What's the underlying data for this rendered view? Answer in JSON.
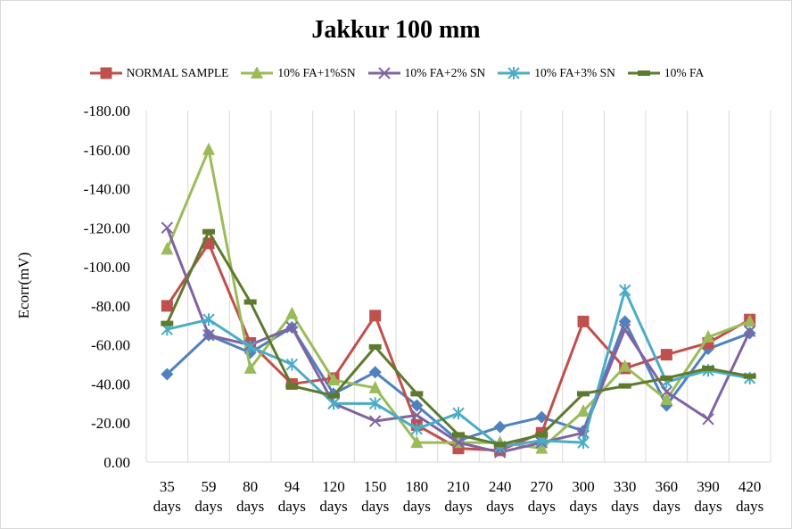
{
  "chart_data": {
    "type": "line",
    "title": "Jakkur 100 mm",
    "xlabel": "",
    "ylabel": "Ecorr(mV)",
    "ylim": [
      -180,
      0
    ],
    "y_reversed": true,
    "yticks": [
      "-180.00",
      "-160.00",
      "-140.00",
      "-120.00",
      "-100.00",
      "-80.00",
      "-60.00",
      "-40.00",
      "-20.00",
      "0.00"
    ],
    "ytick_values": [
      -180,
      -160,
      -140,
      -120,
      -100,
      -80,
      -60,
      -40,
      -20,
      0
    ],
    "grid": "vertical",
    "legend_position": "top",
    "categories": [
      [
        "35",
        "days"
      ],
      [
        "59",
        "days"
      ],
      [
        "80",
        "days"
      ],
      [
        "94",
        "days"
      ],
      [
        "120",
        "days"
      ],
      [
        "150",
        "days"
      ],
      [
        "180",
        "days"
      ],
      [
        "210",
        "days"
      ],
      [
        "240",
        "days"
      ],
      [
        "270",
        "days"
      ],
      [
        "300",
        "days"
      ],
      [
        "330",
        "days"
      ],
      [
        "360",
        "days"
      ],
      [
        "390",
        "days"
      ],
      [
        "420",
        "days"
      ]
    ],
    "series": [
      {
        "name": "",
        "in_legend": false,
        "color": "#4f81bd",
        "marker": "diamond",
        "values": [
          -45,
          -65,
          -56,
          -69,
          -35,
          -46,
          -29,
          -11,
          -18,
          -23,
          -16,
          -72,
          -29,
          -58,
          -66
        ]
      },
      {
        "name": "NORMAL SAMPLE",
        "in_legend": true,
        "color": "#c0504d",
        "marker": "square",
        "values": [
          -80,
          -112,
          -61,
          -40,
          -43,
          -75,
          -19,
          -7,
          -6,
          -15,
          -72,
          -48,
          -55,
          -61,
          -73
        ]
      },
      {
        "name": "10% FA+1%SN",
        "in_legend": true,
        "color": "#9bbb59",
        "marker": "triangle",
        "values": [
          -109,
          -160,
          -48,
          -76,
          -42,
          -38,
          -10,
          -10,
          -10,
          -7,
          -26,
          -49,
          -32,
          -64,
          -72
        ]
      },
      {
        "name": "10% FA+2% SN",
        "in_legend": true,
        "color": "#8064a2",
        "marker": "x",
        "values": [
          -120,
          -65,
          -60,
          -69,
          -30,
          -21,
          -24,
          -10,
          -5,
          -10,
          -15,
          -68,
          -36,
          -22,
          -67
        ]
      },
      {
        "name": "10% FA+3% SN",
        "in_legend": true,
        "color": "#4bacc6",
        "marker": "star",
        "values": [
          -68,
          -73,
          -59,
          -50,
          -30,
          -30,
          -17,
          -25,
          -8,
          -11,
          -10,
          -88,
          -41,
          -47,
          -43
        ]
      },
      {
        "name": "10% FA",
        "in_legend": true,
        "color": "#5e7a2e",
        "marker": "dash",
        "values": [
          -71,
          -118,
          -82,
          -39,
          -34,
          -59,
          -35,
          -14,
          -9,
          -14,
          -35,
          -39,
          -43,
          -48,
          -44
        ]
      }
    ]
  }
}
